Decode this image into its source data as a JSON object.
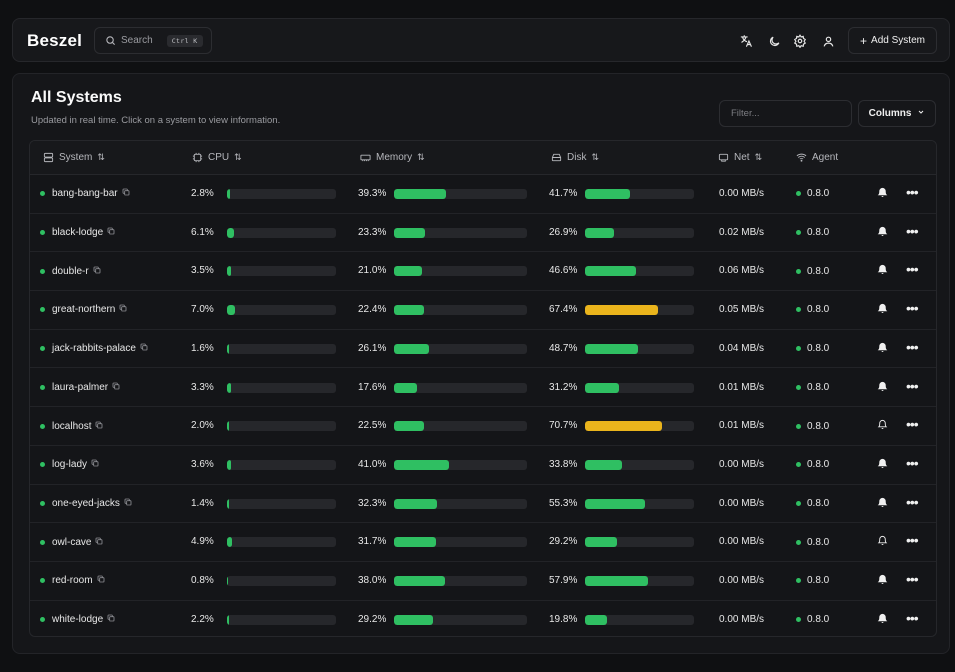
{
  "app": {
    "logo": "Beszel",
    "search_label": "Search",
    "search_shortcut": "Ctrl K",
    "add_system_label": "Add System"
  },
  "page": {
    "title": "All Systems",
    "subtitle": "Updated in real time. Click on a system to view information.",
    "filter_placeholder": "Filter...",
    "columns_label": "Columns"
  },
  "columns": {
    "system": "System",
    "cpu": "CPU",
    "memory": "Memory",
    "disk": "Disk",
    "net": "Net",
    "agent": "Agent"
  },
  "colors": {
    "ok": "#2fbf62",
    "warn": "#eab41c"
  },
  "systems": [
    {
      "name": "bang-bang-bar",
      "cpu": "2.8%",
      "cpu_v": 2.8,
      "mem": "39.3%",
      "mem_v": 39.3,
      "disk": "41.7%",
      "disk_v": 41.7,
      "net": "0.00 MB/s",
      "agent": "0.8.0",
      "bell": "filled"
    },
    {
      "name": "black-lodge",
      "cpu": "6.1%",
      "cpu_v": 6.1,
      "mem": "23.3%",
      "mem_v": 23.3,
      "disk": "26.9%",
      "disk_v": 26.9,
      "net": "0.02 MB/s",
      "agent": "0.8.0",
      "bell": "filled"
    },
    {
      "name": "double-r",
      "cpu": "3.5%",
      "cpu_v": 3.5,
      "mem": "21.0%",
      "mem_v": 21.0,
      "disk": "46.6%",
      "disk_v": 46.6,
      "net": "0.06 MB/s",
      "agent": "0.8.0",
      "bell": "filled"
    },
    {
      "name": "great-northern",
      "cpu": "7.0%",
      "cpu_v": 7.0,
      "mem": "22.4%",
      "mem_v": 22.4,
      "disk": "67.4%",
      "disk_v": 67.4,
      "net": "0.05 MB/s",
      "agent": "0.8.0",
      "bell": "filled"
    },
    {
      "name": "jack-rabbits-palace",
      "cpu": "1.6%",
      "cpu_v": 1.6,
      "mem": "26.1%",
      "mem_v": 26.1,
      "disk": "48.7%",
      "disk_v": 48.7,
      "net": "0.04 MB/s",
      "agent": "0.8.0",
      "bell": "filled"
    },
    {
      "name": "laura-palmer",
      "cpu": "3.3%",
      "cpu_v": 3.3,
      "mem": "17.6%",
      "mem_v": 17.6,
      "disk": "31.2%",
      "disk_v": 31.2,
      "net": "0.01 MB/s",
      "agent": "0.8.0",
      "bell": "filled"
    },
    {
      "name": "localhost",
      "cpu": "2.0%",
      "cpu_v": 2.0,
      "mem": "22.5%",
      "mem_v": 22.5,
      "disk": "70.7%",
      "disk_v": 70.7,
      "net": "0.01 MB/s",
      "agent": "0.8.0",
      "bell": "outline"
    },
    {
      "name": "log-lady",
      "cpu": "3.6%",
      "cpu_v": 3.6,
      "mem": "41.0%",
      "mem_v": 41.0,
      "disk": "33.8%",
      "disk_v": 33.8,
      "net": "0.00 MB/s",
      "agent": "0.8.0",
      "bell": "filled"
    },
    {
      "name": "one-eyed-jacks",
      "cpu": "1.4%",
      "cpu_v": 1.4,
      "mem": "32.3%",
      "mem_v": 32.3,
      "disk": "55.3%",
      "disk_v": 55.3,
      "net": "0.00 MB/s",
      "agent": "0.8.0",
      "bell": "filled"
    },
    {
      "name": "owl-cave",
      "cpu": "4.9%",
      "cpu_v": 4.9,
      "mem": "31.7%",
      "mem_v": 31.7,
      "disk": "29.2%",
      "disk_v": 29.2,
      "net": "0.00 MB/s",
      "agent": "0.8.0",
      "bell": "outline"
    },
    {
      "name": "red-room",
      "cpu": "0.8%",
      "cpu_v": 0.8,
      "mem": "38.0%",
      "mem_v": 38.0,
      "disk": "57.9%",
      "disk_v": 57.9,
      "net": "0.00 MB/s",
      "agent": "0.8.0",
      "bell": "filled"
    },
    {
      "name": "white-lodge",
      "cpu": "2.2%",
      "cpu_v": 2.2,
      "mem": "29.2%",
      "mem_v": 29.2,
      "disk": "19.8%",
      "disk_v": 19.8,
      "net": "0.00 MB/s",
      "agent": "0.8.0",
      "bell": "filled"
    }
  ]
}
